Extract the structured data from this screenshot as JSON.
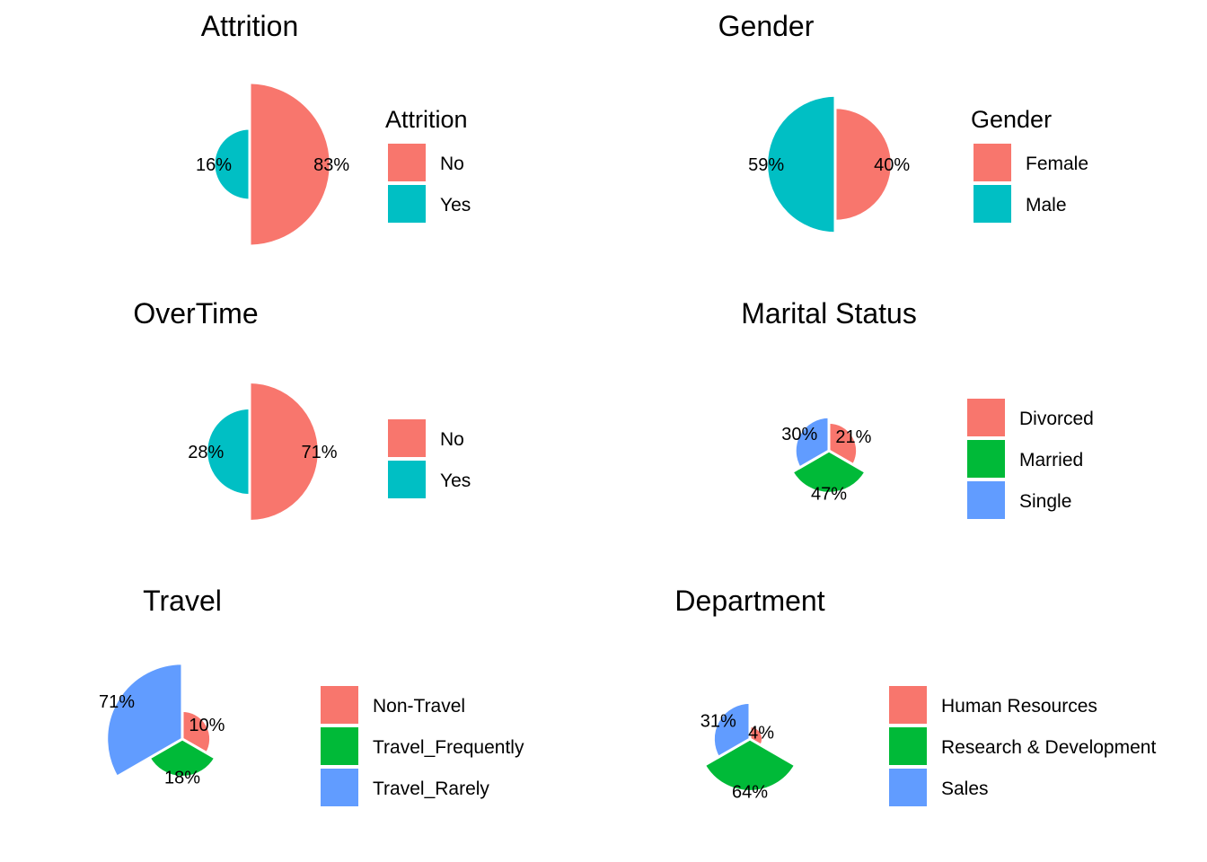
{
  "colors": {
    "two": [
      "#F8766D",
      "#00BFC4"
    ],
    "three": [
      "#F8766D",
      "#00BA38",
      "#619CFF"
    ]
  },
  "chart_data": [
    {
      "type": "pie",
      "title": "Attrition",
      "legend_title": "Attrition",
      "categories": [
        "No",
        "Yes"
      ],
      "values": [
        83,
        16
      ],
      "labels": [
        "83%",
        "16%"
      ]
    },
    {
      "type": "pie",
      "title": "Gender",
      "legend_title": "Gender",
      "categories": [
        "Female",
        "Male"
      ],
      "values": [
        40,
        59
      ],
      "labels": [
        "40%",
        "59%"
      ]
    },
    {
      "type": "pie",
      "title": "OverTime",
      "legend_title": "",
      "categories": [
        "No",
        "Yes"
      ],
      "values": [
        71,
        28
      ],
      "labels": [
        "71%",
        "28%"
      ]
    },
    {
      "type": "pie",
      "title": "Marital Status",
      "legend_title": "",
      "categories": [
        "Divorced",
        "Married",
        "Single"
      ],
      "values": [
        21,
        47,
        30
      ],
      "labels": [
        "21%",
        "47%",
        "30%"
      ]
    },
    {
      "type": "pie",
      "title": "Travel",
      "legend_title": "",
      "categories": [
        "Non-Travel",
        "Travel_Frequently",
        "Travel_Rarely"
      ],
      "values": [
        10,
        18,
        71
      ],
      "labels": [
        "10%",
        "18%",
        "71%"
      ]
    },
    {
      "type": "pie",
      "title": "Department",
      "legend_title": "",
      "categories": [
        "Human Resources",
        "Research & Development",
        "Sales"
      ],
      "values": [
        4,
        64,
        31
      ],
      "labels": [
        "4%",
        "64%",
        "31%"
      ]
    }
  ]
}
